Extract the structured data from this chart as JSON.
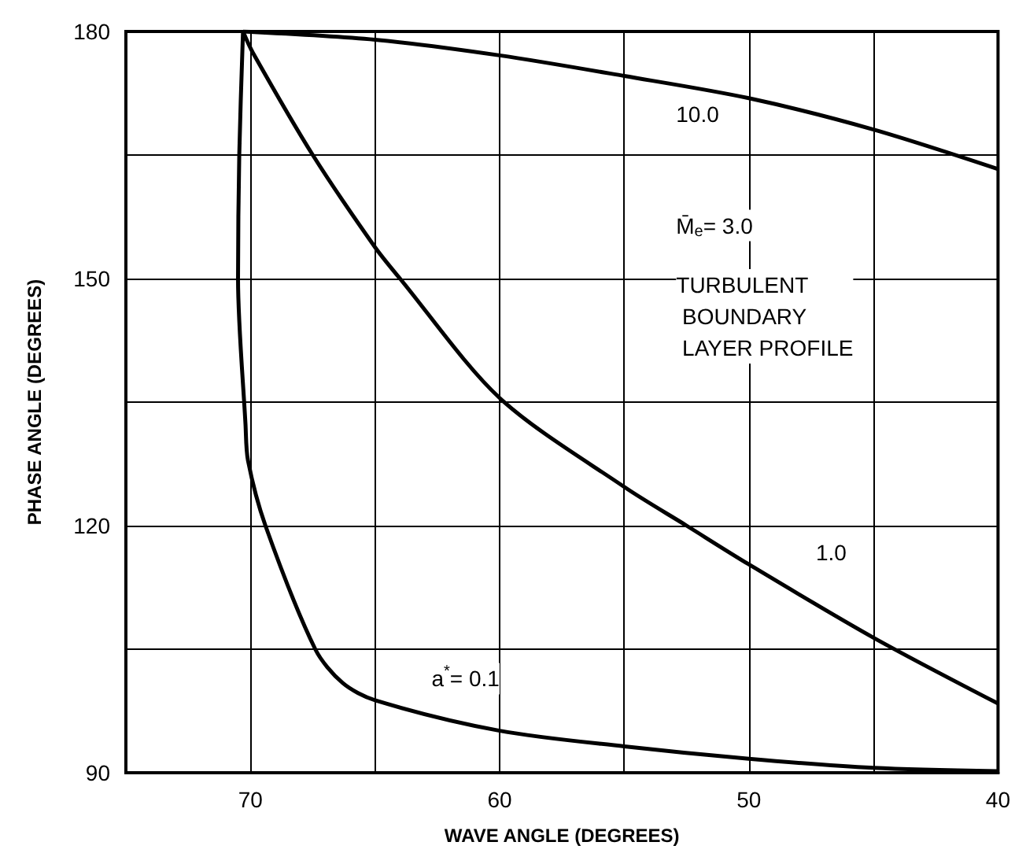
{
  "chart_data": {
    "type": "line",
    "xlabel": "WAVE ANGLE (DEGREES)",
    "ylabel": "PHASE ANGLE (DEGREES)",
    "xlim": [
      75,
      40
    ],
    "ylim": [
      90,
      180
    ],
    "xticks": [
      70,
      {
        "value": 65,
        "label": null
      },
      60,
      {
        "value": 55,
        "label": null
      },
      50,
      {
        "value": 45,
        "label": null
      },
      40
    ],
    "yticks": [
      90,
      {
        "value": 105,
        "label": null
      },
      120,
      {
        "value": 135,
        "label": null
      },
      150,
      {
        "value": 165,
        "label": null
      },
      180
    ],
    "grid": true,
    "marker": "none",
    "line_style": "solid",
    "series": [
      {
        "color": "#000000",
        "x": [
          70.3,
          65,
          60,
          55,
          50,
          45,
          40
        ],
        "values": [
          180,
          179,
          177.1,
          174.6,
          171.9,
          168.1,
          163.3
        ]
      },
      {
        "color": "#000000",
        "x": [
          70.3,
          69.9,
          67.5,
          65,
          64,
          60,
          55,
          52.5,
          50,
          45,
          40
        ],
        "values": [
          180,
          177.4,
          165,
          153.8,
          150,
          135.5,
          124.7,
          120,
          115.3,
          106.4,
          98.4
        ]
      },
      {
        "color": "#000000",
        "x": [
          70.3,
          70.45,
          70.5,
          70.2,
          70.1,
          69.4,
          67.4,
          66.3,
          65,
          60,
          55,
          50,
          45,
          40
        ],
        "values": [
          180,
          165,
          150,
          132.3,
          127.9,
          120,
          105,
          100.9,
          98.8,
          95.1,
          93.2,
          91.7,
          90.6,
          90.2
        ]
      }
    ],
    "annotations": [
      "10.0",
      "1.0",
      "a$^{*}$= 0.1",
      "M̄$_{e}$= 3.0",
      "TURBULENT\n BOUNDARY\n LAYER PROFILE"
    ]
  }
}
